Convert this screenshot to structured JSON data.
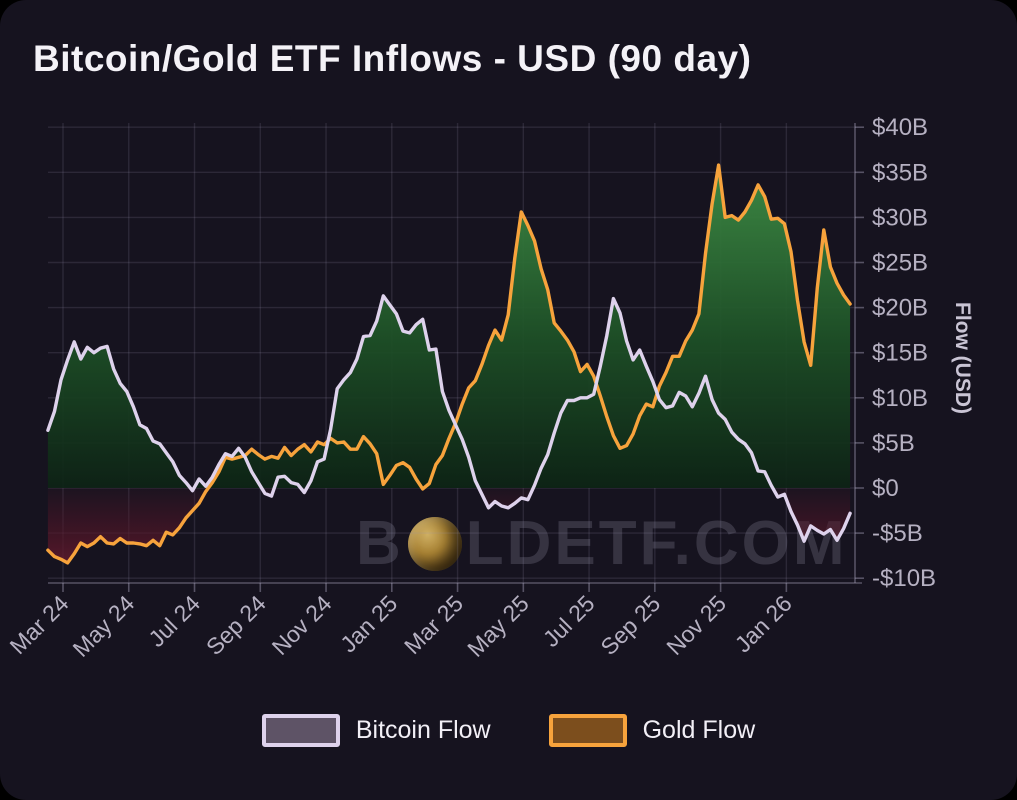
{
  "title": "Bitcoin/Gold ETF Inflows - USD (90 day)",
  "watermark": {
    "prefix": "B",
    "suffix": "LDETF.COM",
    "coin_icon": "gold-coin"
  },
  "y_axis": {
    "name": "Flow (USD)",
    "ticks": [
      {
        "value": 40,
        "label": "$40B"
      },
      {
        "value": 35,
        "label": "$35B"
      },
      {
        "value": 30,
        "label": "$30B"
      },
      {
        "value": 25,
        "label": "$25B"
      },
      {
        "value": 20,
        "label": "$20B"
      },
      {
        "value": 15,
        "label": "$15B"
      },
      {
        "value": 10,
        "label": "$10B"
      },
      {
        "value": 5,
        "label": "$5B"
      },
      {
        "value": 0,
        "label": "$0"
      },
      {
        "value": -5,
        "label": "-$5B"
      },
      {
        "value": -10,
        "label": "-$10B"
      }
    ]
  },
  "x_axis": {
    "ticks": [
      {
        "month": 0,
        "label": "Mar 24"
      },
      {
        "month": 2,
        "label": "May 24"
      },
      {
        "month": 4,
        "label": "Jul 24"
      },
      {
        "month": 6,
        "label": "Sep 24"
      },
      {
        "month": 8,
        "label": "Nov 24"
      },
      {
        "month": 10,
        "label": "Jan 25"
      },
      {
        "month": 12,
        "label": "Mar 25"
      },
      {
        "month": 14,
        "label": "May 25"
      },
      {
        "month": 16,
        "label": "Jul 25"
      },
      {
        "month": 18,
        "label": "Sep 25"
      },
      {
        "month": 20,
        "label": "Nov 25"
      },
      {
        "month": 22,
        "label": "Jan 26"
      }
    ]
  },
  "legend": [
    {
      "label": "Bitcoin Flow",
      "line_color": "#ded2ec",
      "swatch_fill": "#5e5366"
    },
    {
      "label": "Gold Flow",
      "line_color": "#f7a33c",
      "swatch_fill": "#7c4e1d"
    }
  ],
  "colors": {
    "background": "#16131f",
    "grid": "rgba(155,150,175,0.17)",
    "axis": "rgba(165,160,185,0.45)",
    "tick_label": "#b6b1c2",
    "title": "#f4f2f7",
    "watermark": "rgba(185,180,205,0.20)",
    "positive_fill_top": "#3f8f46",
    "positive_fill_mid": "#1d5026",
    "positive_fill_bottom": "#0d2315",
    "negative_fill_edge": "#6e1d31",
    "negative_fill_mid": "#541628"
  },
  "chart_data": {
    "type": "line",
    "title": "Bitcoin/Gold ETF Inflows - USD (90 day)",
    "x_unit": "months since Mar 2024",
    "y_unit": "USD billions",
    "x_start": -0.46,
    "x_step": 0.2,
    "x_domain": [
      -0.46,
      24.1
    ],
    "y_domain": [
      -10.5,
      40.5
    ],
    "grid": true,
    "legend_position": "bottom",
    "fill_rule": "area to zero: green above $0, dark red below $0",
    "series": [
      {
        "name": "Bitcoin Flow",
        "color": "#ded2ec",
        "values": [
          6.4,
          8.5,
          12.0,
          14.2,
          16.2,
          14.3,
          15.6,
          15.0,
          15.5,
          15.7,
          13.2,
          11.6,
          10.7,
          9.0,
          7.0,
          6.6,
          5.2,
          4.9,
          3.9,
          2.9,
          1.4,
          0.6,
          -0.3,
          1.0,
          0.2,
          1.2,
          2.6,
          3.8,
          3.5,
          4.4,
          3.4,
          1.8,
          0.6,
          -0.6,
          -0.9,
          1.2,
          1.3,
          0.6,
          0.4,
          -0.5,
          0.8,
          2.9,
          3.2,
          6.5,
          11.0,
          12.0,
          12.8,
          14.3,
          16.8,
          16.9,
          18.5,
          21.3,
          20.3,
          19.3,
          17.4,
          17.2,
          18.1,
          18.7,
          15.3,
          15.4,
          10.7,
          8.6,
          7.0,
          5.4,
          3.4,
          0.8,
          -0.7,
          -2.2,
          -1.5,
          -2.0,
          -2.2,
          -1.7,
          -1.1,
          -1.3,
          0.3,
          2.2,
          3.7,
          6.1,
          8.3,
          9.7,
          9.7,
          10.0,
          10.0,
          10.4,
          13.5,
          16.9,
          21.0,
          19.4,
          16.3,
          14.2,
          15.3,
          13.5,
          11.8,
          9.8,
          8.9,
          9.1,
          10.6,
          10.2,
          9.0,
          10.5,
          12.4,
          9.8,
          8.3,
          7.6,
          6.2,
          5.4,
          4.9,
          3.9,
          1.9,
          1.8,
          0.3,
          -1.0,
          -0.7,
          -2.6,
          -4.1,
          -5.9,
          -4.2,
          -4.7,
          -5.1,
          -4.6,
          -5.8,
          -4.5,
          -2.8
        ]
      },
      {
        "name": "Gold Flow",
        "color": "#f7a33c",
        "values": [
          -6.9,
          -7.6,
          -7.9,
          -8.3,
          -7.3,
          -6.1,
          -6.5,
          -6.1,
          -5.4,
          -6.1,
          -6.2,
          -5.6,
          -6.1,
          -6.1,
          -6.2,
          -6.4,
          -5.8,
          -6.4,
          -4.9,
          -5.2,
          -4.4,
          -3.3,
          -2.5,
          -1.7,
          -0.4,
          0.6,
          1.8,
          3.4,
          3.2,
          3.4,
          3.6,
          4.3,
          3.7,
          3.2,
          3.5,
          3.3,
          4.5,
          3.6,
          4.3,
          4.8,
          4.0,
          5.1,
          4.8,
          5.5,
          5.0,
          5.1,
          4.3,
          4.3,
          5.7,
          4.9,
          3.8,
          0.4,
          1.4,
          2.5,
          2.8,
          2.3,
          1.0,
          -0.1,
          0.5,
          2.6,
          3.6,
          5.5,
          7.2,
          9.3,
          11.1,
          11.9,
          13.7,
          15.8,
          17.5,
          16.4,
          19.2,
          25.5,
          30.6,
          29.1,
          27.4,
          24.3,
          22.0,
          18.3,
          17.4,
          16.4,
          15.1,
          12.9,
          13.7,
          12.4,
          10.2,
          7.9,
          5.8,
          4.4,
          4.7,
          6.0,
          8.0,
          9.3,
          9.0,
          11.3,
          12.8,
          14.6,
          14.6,
          16.3,
          17.5,
          19.3,
          26.0,
          31.5,
          35.8,
          30.0,
          30.2,
          29.7,
          30.6,
          31.9,
          33.6,
          32.3,
          29.8,
          29.9,
          29.3,
          26.2,
          20.8,
          16.2,
          13.6,
          22.2,
          28.6,
          24.5,
          22.7,
          21.4,
          20.4
        ]
      }
    ]
  }
}
